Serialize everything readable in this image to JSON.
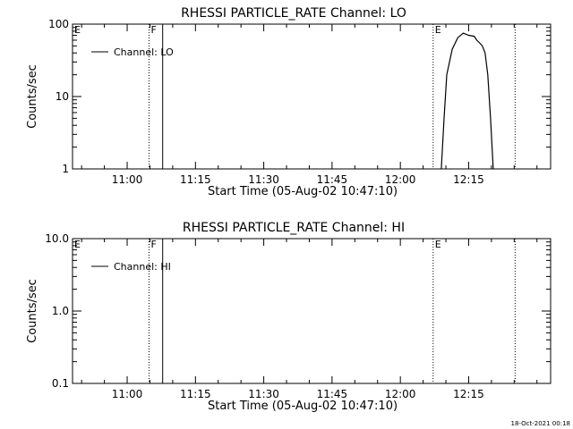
{
  "footer": {
    "timestamp": "18-Oct-2021 00:18"
  },
  "colors": {
    "background": "#ffffff",
    "foreground": "#000000"
  },
  "chart_data": [
    {
      "type": "line",
      "title": "RHESSI PARTICLE_RATE Channel: LO",
      "xlabel": "Start Time (05-Aug-02 10:47:10)",
      "ylabel": "Counts/sec",
      "yscale": "log",
      "ylim": [
        1,
        100
      ],
      "ytick_values": [
        1,
        10,
        100
      ],
      "ytick_labels": [
        "1",
        "10",
        "100"
      ],
      "xlim_minutes": [
        10.8,
        12.55
      ],
      "xtick_values": [
        11.0,
        11.25,
        11.5,
        11.75,
        12.0,
        12.25
      ],
      "xtick_labels": [
        "11:00",
        "11:15",
        "11:30",
        "11:45",
        "12:00",
        "12:15"
      ],
      "legend": {
        "position": "top-left",
        "entries": [
          "Channel: LO"
        ]
      },
      "flags": [
        {
          "label": "E",
          "x": 10.8
        },
        {
          "label": "F",
          "x": 11.08
        },
        {
          "label": "E",
          "x": 12.12
        }
      ],
      "dotted_lines_x": [
        11.08,
        12.12,
        12.42
      ],
      "solid_lines_x": [
        11.13
      ],
      "series": [
        {
          "name": "Channel: LO",
          "x": [
            12.15,
            12.16,
            12.17,
            12.19,
            12.21,
            12.23,
            12.25,
            12.27,
            12.28,
            12.29,
            12.3,
            12.31,
            12.32,
            12.33,
            12.34
          ],
          "y": [
            1,
            5,
            20,
            45,
            65,
            75,
            70,
            68,
            60,
            55,
            50,
            40,
            20,
            5,
            1
          ]
        }
      ]
    },
    {
      "type": "line",
      "title": "RHESSI PARTICLE_RATE Channel: HI",
      "xlabel": "Start Time (05-Aug-02 10:47:10)",
      "ylabel": "Counts/sec",
      "yscale": "log",
      "ylim": [
        0.1,
        10
      ],
      "ytick_values": [
        0.1,
        1,
        10
      ],
      "ytick_labels": [
        "0.1",
        "1.0",
        "10.0"
      ],
      "xlim_minutes": [
        10.8,
        12.55
      ],
      "xtick_values": [
        11.0,
        11.25,
        11.5,
        11.75,
        12.0,
        12.25
      ],
      "xtick_labels": [
        "11:00",
        "11:15",
        "11:30",
        "11:45",
        "12:00",
        "12:15"
      ],
      "legend": {
        "position": "top-left",
        "entries": [
          "Channel: HI"
        ]
      },
      "flags": [
        {
          "label": "E",
          "x": 10.8
        },
        {
          "label": "F",
          "x": 11.08
        },
        {
          "label": "E",
          "x": 12.12
        }
      ],
      "dotted_lines_x": [
        11.08,
        12.12,
        12.42
      ],
      "solid_lines_x": [
        11.13
      ],
      "series": [
        {
          "name": "Channel: HI",
          "x": [],
          "y": []
        }
      ]
    }
  ]
}
